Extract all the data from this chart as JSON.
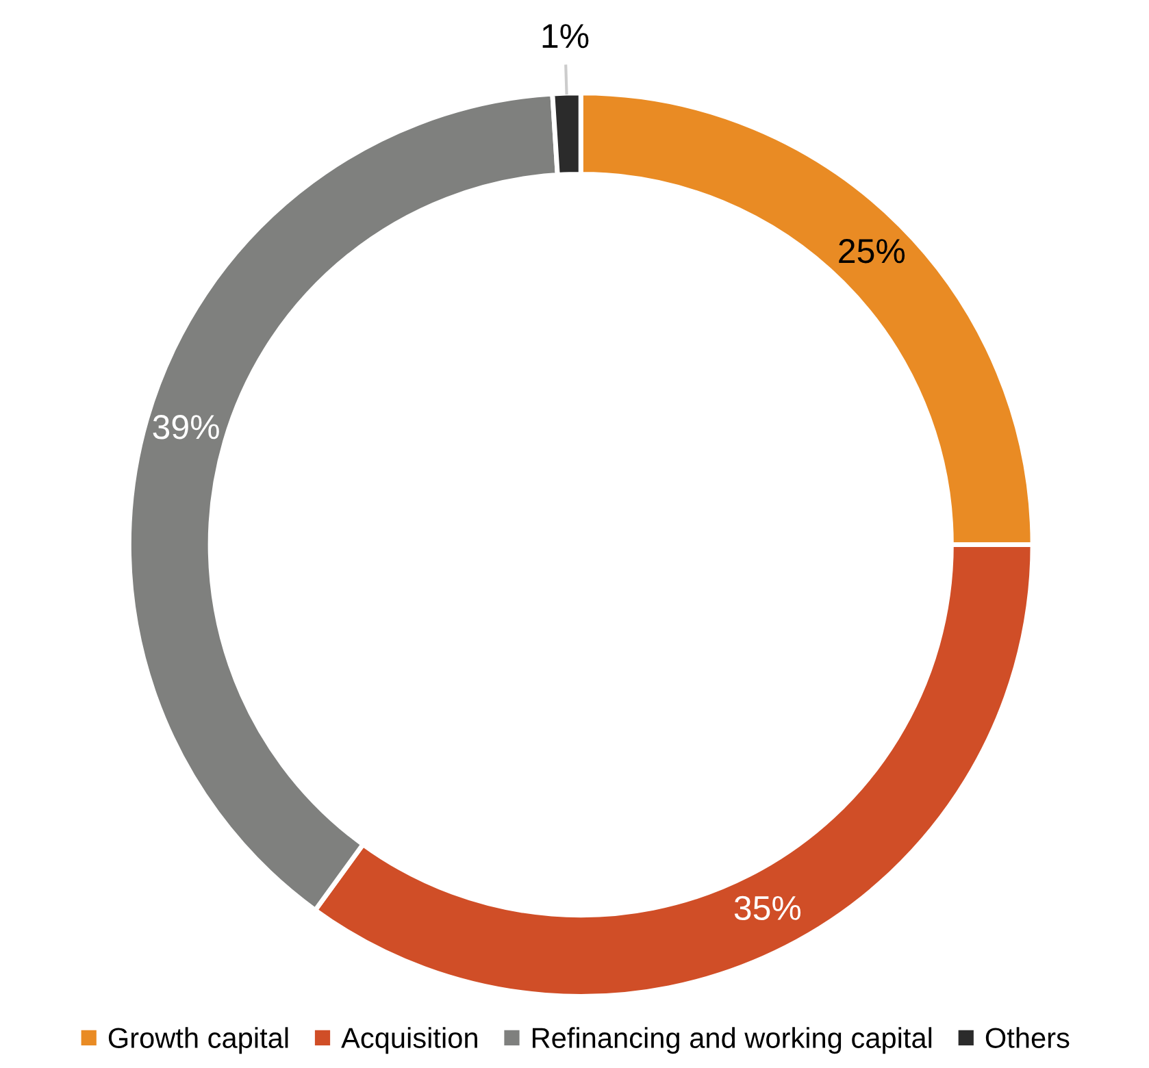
{
  "chart_data": {
    "type": "donut",
    "categories": [
      "Growth capital",
      "Acquisition",
      "Refinancing and working capital",
      "Others"
    ],
    "values": [
      25,
      35,
      39,
      1
    ],
    "colors": [
      "#e98b24",
      "#d04e27",
      "#7f807e",
      "#2b2b2b"
    ],
    "value_labels": [
      "25%",
      "35%",
      "39%",
      "1%"
    ],
    "legend": "bottom"
  }
}
